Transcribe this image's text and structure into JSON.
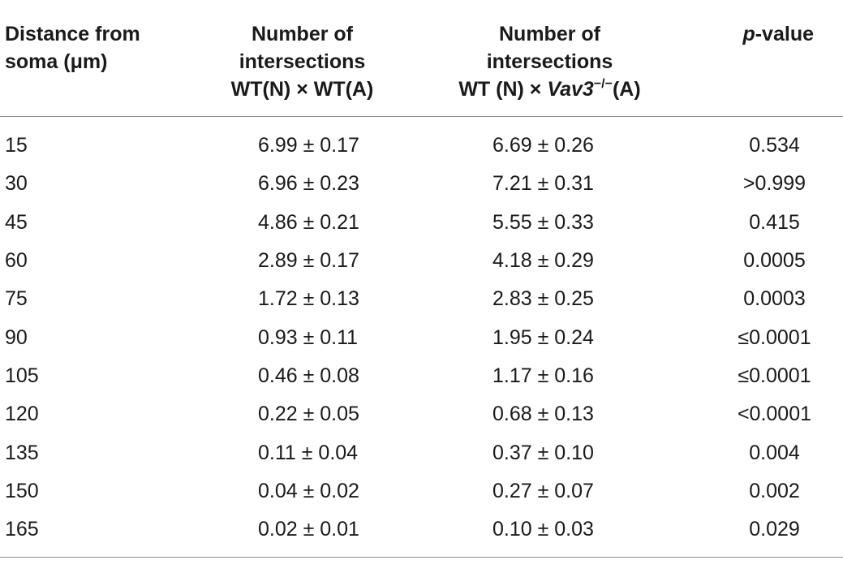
{
  "headers": {
    "col1_line1": "Distance from",
    "col1_line2": "soma (μm)",
    "col2_line1": "Number of",
    "col2_line2": "intersections",
    "col2_line3": "WT(N) × WT(A)",
    "col3_line1": "Number of",
    "col3_line2": "intersections",
    "col3_line3_pre": "WT (N) × ",
    "col3_line3_italic": "Vav3",
    "col3_line3_sup": "−/−",
    "col3_line3_post": "(A)",
    "col4_italic": "p",
    "col4_rest": "-value"
  },
  "rows": [
    {
      "distance": "15",
      "wt": "6.99 ± 0.17",
      "vav3": "6.69 ± 0.26",
      "p": "0.534"
    },
    {
      "distance": "30",
      "wt": "6.96 ± 0.23",
      "vav3": "7.21 ± 0.31",
      "p": ">0.999"
    },
    {
      "distance": "45",
      "wt": "4.86 ± 0.21",
      "vav3": "5.55 ± 0.33",
      "p": "0.415"
    },
    {
      "distance": "60",
      "wt": "2.89 ± 0.17",
      "vav3": "4.18 ± 0.29",
      "p": "0.0005"
    },
    {
      "distance": "75",
      "wt": "1.72 ± 0.13",
      "vav3": "2.83 ± 0.25",
      "p": "0.0003"
    },
    {
      "distance": "90",
      "wt": "0.93 ± 0.11",
      "vav3": "1.95 ± 0.24",
      "p": "≤0.0001"
    },
    {
      "distance": "105",
      "wt": "0.46 ± 0.08",
      "vav3": "1.17 ± 0.16",
      "p": "≤0.0001"
    },
    {
      "distance": "120",
      "wt": "0.22 ± 0.05",
      "vav3": "0.68 ± 0.13",
      "p": "<0.0001"
    },
    {
      "distance": "135",
      "wt": "0.11 ± 0.04",
      "vav3": "0.37 ± 0.10",
      "p": "0.004"
    },
    {
      "distance": "150",
      "wt": "0.04 ± 0.02",
      "vav3": "0.27 ± 0.07",
      "p": "0.002"
    },
    {
      "distance": "165",
      "wt": "0.02 ± 0.01",
      "vav3": "0.10 ± 0.03",
      "p": "0.029"
    }
  ]
}
